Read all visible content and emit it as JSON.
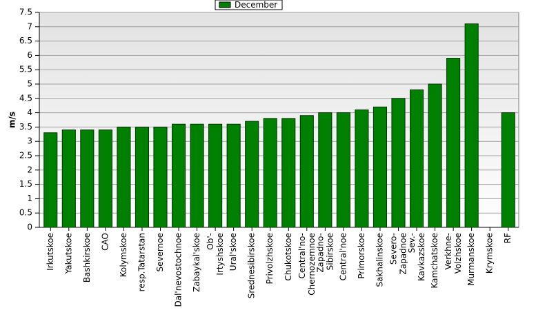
{
  "chart_data": {
    "type": "bar",
    "y_label": "m/s",
    "categories": [
      "Irkutskoe",
      "Yakutskoe",
      "Bashkirskoe",
      "CAO",
      "Kolymskoe",
      "resp.Tatarstan",
      "Severnoe",
      "Dal'nevostochnoe",
      "Zabaykal'skoe",
      "Ob'-\nIrtyshskoe",
      "Ural'skoe",
      "Srednesibirskoe",
      "Privolzhskoe",
      "Chukotskoe",
      "Central'no-\nChernozemnoe",
      "Zapadno-\nSibirskoe",
      "Central'noe",
      "Primorskoe",
      "Sakhalinskoe",
      "Severo-\nZapadnoe",
      "Sev.-\nKavkazskoe",
      "Kamchatskoe",
      "Verkhne-\nVolzhskoe",
      "Murmanskoe",
      "Krymskoe",
      "RF"
    ],
    "series": [
      {
        "name": "December",
        "color": "#008000",
        "values": [
          3.3,
          3.4,
          3.4,
          3.4,
          3.5,
          3.5,
          3.5,
          3.6,
          3.6,
          3.6,
          3.6,
          3.7,
          3.8,
          3.8,
          3.9,
          4.0,
          4.0,
          4.1,
          4.2,
          4.5,
          4.8,
          5.0,
          5.9,
          7.1,
          null,
          4.0
        ]
      }
    ],
    "ylim": [
      0,
      7.5
    ],
    "yticks": [
      0,
      0.5,
      1,
      1.5,
      2,
      2.5,
      3,
      3.5,
      4,
      4.5,
      5,
      5.5,
      6,
      6.5,
      7,
      7.5
    ],
    "grid": true,
    "legend": "top"
  }
}
